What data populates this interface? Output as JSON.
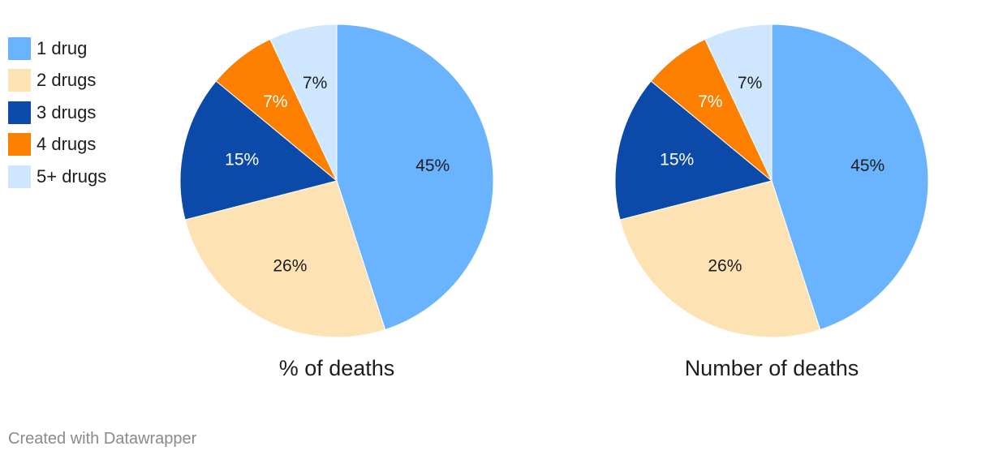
{
  "legend": [
    {
      "label": "1 drug",
      "color": "#6ab4ff"
    },
    {
      "label": "2 drugs",
      "color": "#fde2b4"
    },
    {
      "label": "3 drugs",
      "color": "#0b4aa8"
    },
    {
      "label": "4 drugs",
      "color": "#fd7f00"
    },
    {
      "label": "5+ drugs",
      "color": "#cfe6ff"
    }
  ],
  "chart_data": [
    {
      "type": "pie",
      "title": "% of deaths",
      "categories": [
        "1 drug",
        "2 drugs",
        "3 drugs",
        "4 drugs",
        "5+ drugs"
      ],
      "values": [
        45,
        26,
        15,
        7,
        7
      ],
      "labels": [
        "45%",
        "26%",
        "15%",
        "7%",
        "7%"
      ],
      "colors": [
        "#6ab4ff",
        "#fde2b4",
        "#0b4aa8",
        "#fd7f00",
        "#cfe6ff"
      ],
      "label_colors": [
        "#1d1d1d",
        "#1d1d1d",
        "#ffffff",
        "#ffffff",
        "#1d1d1d"
      ]
    },
    {
      "type": "pie",
      "title": "Number of deaths",
      "categories": [
        "1 drug",
        "2 drugs",
        "3 drugs",
        "4 drugs",
        "5+ drugs"
      ],
      "values": [
        45,
        26,
        15,
        7,
        7
      ],
      "labels": [
        "45%",
        "26%",
        "15%",
        "7%",
        "7%"
      ],
      "colors": [
        "#6ab4ff",
        "#fde2b4",
        "#0b4aa8",
        "#fd7f00",
        "#cfe6ff"
      ],
      "label_colors": [
        "#1d1d1d",
        "#1d1d1d",
        "#ffffff",
        "#ffffff",
        "#1d1d1d"
      ]
    }
  ],
  "footer": {
    "credit": "Created with Datawrapper"
  }
}
